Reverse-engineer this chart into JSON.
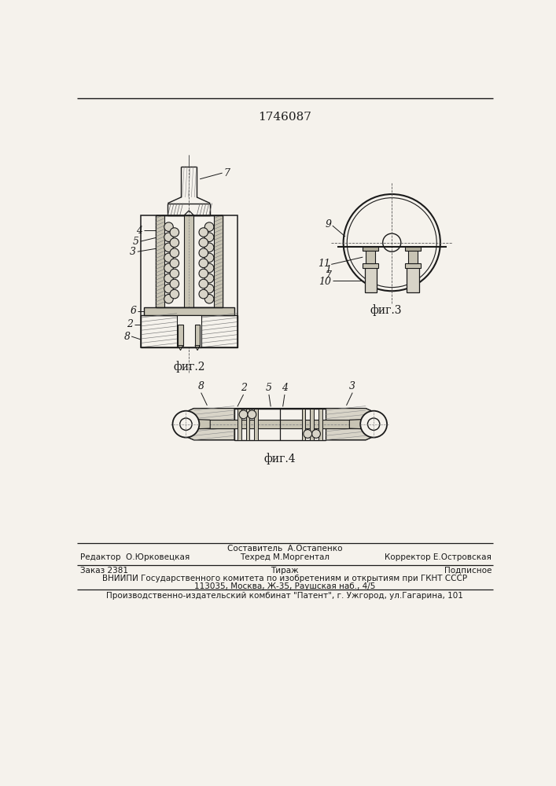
{
  "patent_number": "1746087",
  "fig2_caption": "фиг.2",
  "fig3_caption": "фиг.3",
  "fig4_caption": "фиг.4",
  "footer_line1_left": "Редактор  О.Юрковецкая",
  "footer_line1_center": "Составитель  А.Остапенко",
  "footer_line1_right": "Корректор Е.Островская",
  "footer_line2_left": "Техред М.Моргентал",
  "footer_line3_left": "Заказ 2381",
  "footer_line3_mid": "Тираж",
  "footer_line3_right": "Подписное",
  "footer_line4": "ВНИИПИ Государственного комитета по изобретениям и открытиям при ГКНТ СССР",
  "footer_line5": "113035, Москва, Ж-35, Раушская наб., 4/5",
  "footer_line6": "Производственно-издательский комбинат \"Патент\", г. Ужгород, ул.Гагарина, 101",
  "bg_color": "#f5f2ec",
  "line_color": "#1a1a1a",
  "fill_light": "#d8d4c8",
  "fill_medium": "#c8c4b4",
  "fill_dark": "#b0ac9c"
}
